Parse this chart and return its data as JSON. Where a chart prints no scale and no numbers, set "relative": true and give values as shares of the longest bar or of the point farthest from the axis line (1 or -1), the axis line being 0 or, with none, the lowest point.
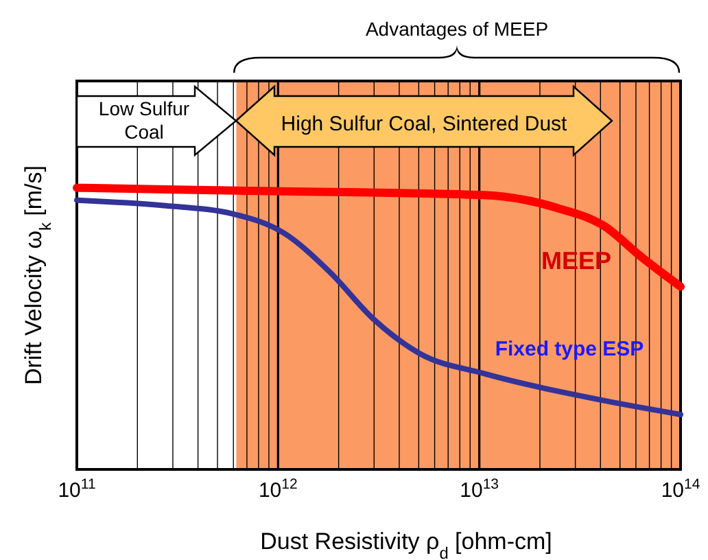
{
  "chart_data": {
    "type": "line",
    "relative": true,
    "log": "x",
    "grid": "x",
    "xlabel": "Dust Resistivity  ρ$_{d}$  [ohm-cm]",
    "ylabel": "Drift Velocity  ω$_{k}$ [m/s]",
    "xlim": [
      100000000000.0,
      100000000000000.0
    ],
    "xticks": [
      {
        "value": 100000000000.0,
        "label": "10$^{11}$"
      },
      {
        "value": 200000000000.0,
        "label": null
      },
      {
        "value": 300000000000.0,
        "label": null
      },
      {
        "value": 400000000000.0,
        "label": null
      },
      {
        "value": 500000000000.0,
        "label": null
      },
      {
        "value": 600000000000.0,
        "label": null
      },
      {
        "value": 700000000000.0,
        "label": null
      },
      {
        "value": 800000000000.0,
        "label": null
      },
      {
        "value": 900000000000.0,
        "label": null
      },
      {
        "value": 1000000000000.0,
        "label": "10$^{12}$"
      },
      {
        "value": 2000000000000.0,
        "label": null
      },
      {
        "value": 3000000000000.0,
        "label": null
      },
      {
        "value": 4000000000000.0,
        "label": null
      },
      {
        "value": 5000000000000.0,
        "label": null
      },
      {
        "value": 6000000000000.0,
        "label": null
      },
      {
        "value": 7000000000000.0,
        "label": null
      },
      {
        "value": 8000000000000.0,
        "label": null
      },
      {
        "value": 9000000000000.0,
        "label": null
      },
      {
        "value": 10000000000000.0,
        "label": "10$^{13}$"
      },
      {
        "value": 20000000000000.0,
        "label": null
      },
      {
        "value": 30000000000000.0,
        "label": null
      },
      {
        "value": 40000000000000.0,
        "label": null
      },
      {
        "value": 50000000000000.0,
        "label": null
      },
      {
        "value": 60000000000000.0,
        "label": null
      },
      {
        "value": 70000000000000.0,
        "label": null
      },
      {
        "value": 80000000000000.0,
        "label": null
      },
      {
        "value": 90000000000000.0,
        "label": null
      },
      {
        "value": 100000000000000.0,
        "label": "10$^{14}$"
      }
    ],
    "bands": [
      {
        "axis": "x",
        "from": 620000000000.0,
        "to": 100000000000000.0,
        "color": "#fc9a64"
      }
    ],
    "annotations": [
      "Advantages of MEEP",
      "Low Sulfur Coal",
      "High Sulfur Coal, Sintered Dust"
    ],
    "series": [
      {
        "name": "MEEP",
        "color": "#ff0000",
        "x": [
          100000000000.0,
          630000000000.0,
          10500000000000.0,
          24500000000000.0,
          42000000000000.0,
          63000000000000.0,
          100000000000000.0
        ],
        "values": [
          1.0,
          0.99,
          0.974,
          0.928,
          0.863,
          0.758,
          0.649
        ]
      },
      {
        "name": "Fixed type ESP",
        "color": "#333399",
        "x": [
          100000000000.0,
          270000000000.0,
          600000000000.0,
          1070000000000.0,
          1800000000000.0,
          3000000000000.0,
          5100000000000.0,
          10500000000000.0,
          42000000000000.0,
          100000000000000.0
        ],
        "values": [
          0.956,
          0.937,
          0.907,
          0.839,
          0.702,
          0.532,
          0.41,
          0.341,
          0.244,
          0.195
        ]
      }
    ]
  }
}
